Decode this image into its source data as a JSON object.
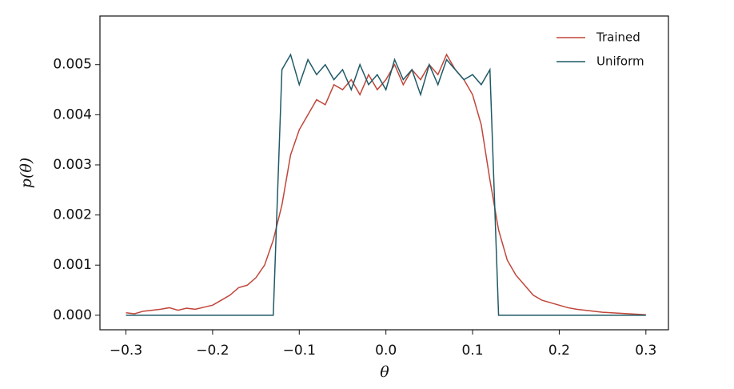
{
  "chart_data": {
    "type": "line",
    "x_label": "θ",
    "y_label": "p(θ)",
    "x": [
      -0.3,
      -0.29,
      -0.28,
      -0.27,
      -0.26,
      -0.25,
      -0.24,
      -0.23,
      -0.22,
      -0.21,
      -0.2,
      -0.19,
      -0.18,
      -0.17,
      -0.16,
      -0.15,
      -0.14,
      -0.13,
      -0.12,
      -0.11,
      -0.1,
      -0.09,
      -0.08,
      -0.07,
      -0.06,
      -0.05,
      -0.04,
      -0.03,
      -0.02,
      -0.01,
      0.0,
      0.01,
      0.02,
      0.03,
      0.04,
      0.05,
      0.06,
      0.07,
      0.08,
      0.09,
      0.1,
      0.11,
      0.12,
      0.13,
      0.14,
      0.15,
      0.16,
      0.17,
      0.18,
      0.19,
      0.2,
      0.21,
      0.22,
      0.23,
      0.24,
      0.25,
      0.26,
      0.27,
      0.28,
      0.29,
      0.3
    ],
    "series": [
      {
        "name": "Trained",
        "color": "#c0463a",
        "values": [
          5e-05,
          3e-05,
          8e-05,
          0.0001,
          0.00012,
          0.00015,
          0.0001,
          0.00014,
          0.00012,
          0.00016,
          0.0002,
          0.0003,
          0.0004,
          0.00055,
          0.0006,
          0.00075,
          0.001,
          0.0015,
          0.0022,
          0.0032,
          0.0037,
          0.004,
          0.0043,
          0.0042,
          0.0046,
          0.0045,
          0.0047,
          0.0044,
          0.0048,
          0.0045,
          0.0047,
          0.005,
          0.0046,
          0.0049,
          0.0047,
          0.005,
          0.0048,
          0.0052,
          0.0049,
          0.0047,
          0.0044,
          0.0038,
          0.0027,
          0.0017,
          0.0011,
          0.0008,
          0.0006,
          0.0004,
          0.0003,
          0.00025,
          0.0002,
          0.00015,
          0.00012,
          0.0001,
          8e-05,
          6e-05,
          5e-05,
          4e-05,
          3e-05,
          2e-05,
          1e-05
        ]
      },
      {
        "name": "Uniform",
        "color": "#1f5a66",
        "values": [
          0,
          0,
          0,
          0,
          0,
          0,
          0,
          0,
          0,
          0,
          0,
          0,
          0,
          0,
          0,
          0,
          0,
          0,
          0.0049,
          0.0052,
          0.0046,
          0.0051,
          0.0048,
          0.005,
          0.0047,
          0.0049,
          0.0045,
          0.005,
          0.0046,
          0.0048,
          0.0045,
          0.0051,
          0.0047,
          0.0049,
          0.0044,
          0.005,
          0.0046,
          0.0051,
          0.0049,
          0.0047,
          0.0048,
          0.0046,
          0.0049,
          0,
          0,
          0,
          0,
          0,
          0,
          0,
          0,
          0,
          0,
          0,
          0,
          0,
          0,
          0,
          0,
          0,
          0
        ]
      }
    ],
    "xlim": [
      -0.33,
      0.326
    ],
    "ylim": [
      -0.00029,
      0.00597
    ],
    "xticks": [
      {
        "value": -0.3,
        "label": "−0.3"
      },
      {
        "value": -0.2,
        "label": "−0.2"
      },
      {
        "value": -0.1,
        "label": "−0.1"
      },
      {
        "value": 0,
        "label": "0.0"
      },
      {
        "value": 0.1,
        "label": "0.1"
      },
      {
        "value": 0.2,
        "label": "0.2"
      },
      {
        "value": 0.3,
        "label": "0.3"
      }
    ],
    "yticks": [
      {
        "value": 0,
        "label": "0.000"
      },
      {
        "value": 0.001,
        "label": "0.001"
      },
      {
        "value": 0.002,
        "label": "0.002"
      },
      {
        "value": 0.003,
        "label": "0.003"
      },
      {
        "value": 0.004,
        "label": "0.004"
      },
      {
        "value": 0.005,
        "label": "0.005"
      }
    ],
    "legend": "upper right",
    "grid": false
  }
}
